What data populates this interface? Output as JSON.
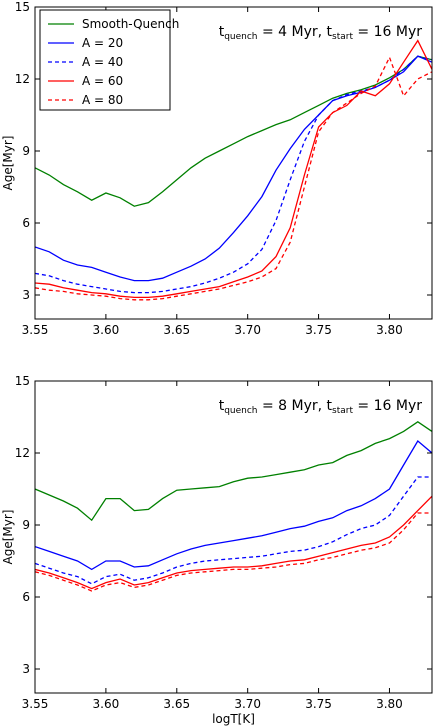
{
  "chart_data": [
    {
      "type": "line",
      "title": "",
      "xlabel": "",
      "ylabel": "Age[Myr]",
      "xlim": [
        3.55,
        3.83
      ],
      "ylim": [
        2.0,
        15.0
      ],
      "xticks": [
        "3.55",
        "3.60",
        "3.65",
        "3.70",
        "3.75",
        "3.80"
      ],
      "yticks": [
        "3",
        "6",
        "9",
        "12",
        "15"
      ],
      "annotation": {
        "t1": "t",
        "s1": "quench",
        "v1": " = 4 Myr, ",
        "t2": "t",
        "s2": "start",
        "v2": " = 16 Myr"
      },
      "legend": {
        "placement": "top-left"
      },
      "x": [
        3.55,
        3.56,
        3.57,
        3.58,
        3.59,
        3.6,
        3.61,
        3.62,
        3.63,
        3.64,
        3.65,
        3.66,
        3.67,
        3.68,
        3.69,
        3.7,
        3.71,
        3.72,
        3.73,
        3.74,
        3.75,
        3.76,
        3.77,
        3.78,
        3.79,
        3.8,
        3.81,
        3.82,
        3.83
      ],
      "series": [
        {
          "name": "Smooth-Quench",
          "color": "#008000",
          "dash": "solid",
          "values": [
            8.3,
            8.0,
            7.6,
            7.3,
            6.95,
            7.25,
            7.05,
            6.7,
            6.85,
            7.3,
            7.8,
            8.3,
            8.7,
            9.0,
            9.3,
            9.6,
            9.85,
            10.1,
            10.3,
            10.6,
            10.9,
            11.2,
            11.4,
            11.55,
            11.75,
            12.05,
            12.4,
            12.95,
            12.8
          ]
        },
        {
          "name": "A = 20",
          "color": "#0000ff",
          "dash": "solid",
          "values": [
            5.0,
            4.8,
            4.45,
            4.25,
            4.15,
            3.95,
            3.75,
            3.6,
            3.6,
            3.7,
            3.95,
            4.2,
            4.5,
            4.95,
            5.6,
            6.3,
            7.1,
            8.2,
            9.1,
            9.9,
            10.5,
            11.1,
            11.3,
            11.45,
            11.65,
            11.95,
            12.3,
            12.95,
            12.7
          ]
        },
        {
          "name": "A = 40",
          "color": "#0000ff",
          "dash": "dashed",
          "values": [
            3.9,
            3.8,
            3.6,
            3.45,
            3.35,
            3.25,
            3.15,
            3.1,
            3.1,
            3.15,
            3.25,
            3.35,
            3.5,
            3.7,
            3.95,
            4.3,
            4.9,
            6.1,
            7.8,
            9.4,
            10.5,
            11.1,
            11.35,
            11.5,
            11.65,
            11.95,
            12.4,
            12.95,
            12.8
          ]
        },
        {
          "name": "A = 60",
          "color": "#ff0000",
          "dash": "solid",
          "values": [
            3.5,
            3.45,
            3.3,
            3.2,
            3.1,
            3.05,
            2.95,
            2.9,
            2.9,
            2.95,
            3.05,
            3.15,
            3.25,
            3.35,
            3.55,
            3.75,
            4.0,
            4.6,
            5.8,
            8.0,
            10.0,
            10.6,
            10.9,
            11.5,
            11.3,
            11.8,
            12.7,
            13.6,
            12.4
          ]
        },
        {
          "name": "A = 80",
          "color": "#ff0000",
          "dash": "dashed",
          "values": [
            3.3,
            3.2,
            3.15,
            3.05,
            3.0,
            2.95,
            2.85,
            2.8,
            2.8,
            2.85,
            2.95,
            3.05,
            3.15,
            3.25,
            3.4,
            3.55,
            3.75,
            4.1,
            5.2,
            7.5,
            9.8,
            10.6,
            11.0,
            11.4,
            11.7,
            12.9,
            11.3,
            12.0,
            12.3
          ]
        }
      ]
    },
    {
      "type": "line",
      "title": "",
      "xlabel": "logT[K]",
      "ylabel": "Age[Myr]",
      "xlim": [
        3.55,
        3.83
      ],
      "ylim": [
        2.0,
        15.0
      ],
      "xticks": [
        "3.55",
        "3.60",
        "3.65",
        "3.70",
        "3.75",
        "3.80"
      ],
      "yticks": [
        "3",
        "6",
        "9",
        "12",
        "15"
      ],
      "annotation": {
        "t1": "t",
        "s1": "quench",
        "v1": " = 8 Myr, ",
        "t2": "t",
        "s2": "start",
        "v2": " = 16 Myr"
      },
      "x": [
        3.55,
        3.56,
        3.57,
        3.58,
        3.59,
        3.6,
        3.61,
        3.62,
        3.63,
        3.64,
        3.65,
        3.66,
        3.67,
        3.68,
        3.69,
        3.7,
        3.71,
        3.72,
        3.73,
        3.74,
        3.75,
        3.76,
        3.77,
        3.78,
        3.79,
        3.8,
        3.81,
        3.82,
        3.83
      ],
      "series": [
        {
          "name": "Smooth-Quench",
          "color": "#008000",
          "dash": "solid",
          "values": [
            10.5,
            10.25,
            10.0,
            9.7,
            9.2,
            10.1,
            10.1,
            9.6,
            9.65,
            10.1,
            10.45,
            10.5,
            10.55,
            10.6,
            10.8,
            10.95,
            11.0,
            11.1,
            11.2,
            11.3,
            11.5,
            11.6,
            11.9,
            12.1,
            12.4,
            12.6,
            12.9,
            13.3,
            12.9
          ]
        },
        {
          "name": "A = 20",
          "color": "#0000ff",
          "dash": "solid",
          "values": [
            8.1,
            7.9,
            7.7,
            7.5,
            7.15,
            7.5,
            7.5,
            7.25,
            7.3,
            7.55,
            7.8,
            8.0,
            8.15,
            8.25,
            8.35,
            8.45,
            8.55,
            8.7,
            8.85,
            8.95,
            9.15,
            9.3,
            9.6,
            9.8,
            10.1,
            10.5,
            11.5,
            12.5,
            12.0
          ]
        },
        {
          "name": "A = 40",
          "color": "#0000ff",
          "dash": "dashed",
          "values": [
            7.4,
            7.2,
            7.0,
            6.85,
            6.55,
            6.85,
            6.95,
            6.7,
            6.8,
            7.0,
            7.25,
            7.4,
            7.5,
            7.55,
            7.6,
            7.65,
            7.7,
            7.8,
            7.9,
            7.95,
            8.1,
            8.3,
            8.6,
            8.85,
            9.0,
            9.4,
            10.2,
            11.0,
            11.0
          ]
        },
        {
          "name": "A = 60",
          "color": "#ff0000",
          "dash": "solid",
          "values": [
            7.15,
            7.0,
            6.8,
            6.6,
            6.35,
            6.6,
            6.75,
            6.5,
            6.6,
            6.8,
            7.0,
            7.1,
            7.15,
            7.2,
            7.25,
            7.25,
            7.3,
            7.4,
            7.5,
            7.55,
            7.7,
            7.85,
            8.0,
            8.15,
            8.25,
            8.5,
            9.0,
            9.6,
            10.2
          ]
        },
        {
          "name": "A = 80",
          "color": "#ff0000",
          "dash": "dashed",
          "values": [
            7.05,
            6.9,
            6.7,
            6.5,
            6.25,
            6.5,
            6.6,
            6.4,
            6.5,
            6.7,
            6.9,
            7.0,
            7.05,
            7.1,
            7.15,
            7.15,
            7.2,
            7.25,
            7.35,
            7.4,
            7.55,
            7.65,
            7.8,
            7.95,
            8.05,
            8.25,
            8.8,
            9.5,
            9.5
          ]
        }
      ]
    }
  ]
}
